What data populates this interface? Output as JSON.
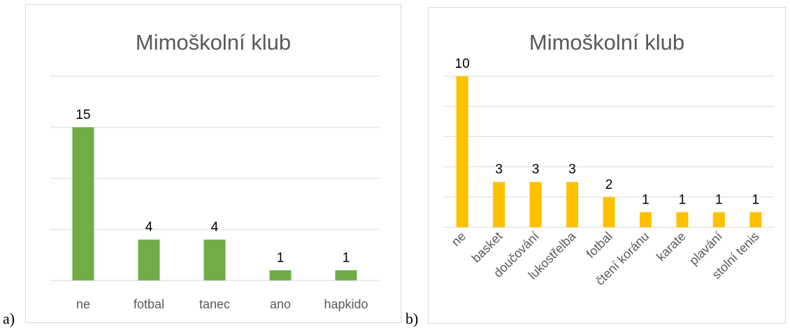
{
  "panel_labels": [
    "a)",
    "b)"
  ],
  "chart_data": [
    {
      "type": "bar",
      "title": "Mimoškolní klub",
      "categories": [
        "ne",
        "fotbal",
        "tanec",
        "ano",
        "hapkido"
      ],
      "values": [
        15,
        4,
        4,
        1,
        1
      ],
      "ylim": [
        0,
        20
      ],
      "grid": true,
      "color": "#70ad47",
      "xlabel": "",
      "ylabel": ""
    },
    {
      "type": "bar",
      "title": "Mimoškolní klub",
      "categories": [
        "ne",
        "basket",
        "doučování",
        "lukostřelba",
        "fotbal",
        "čtení koránu",
        "karate",
        "plavání",
        "stolní tenis"
      ],
      "values": [
        10,
        3,
        3,
        3,
        2,
        1,
        1,
        1,
        1
      ],
      "ylim": [
        0,
        10
      ],
      "grid": true,
      "color": "#ffc000",
      "xlabel": "",
      "ylabel": ""
    }
  ]
}
